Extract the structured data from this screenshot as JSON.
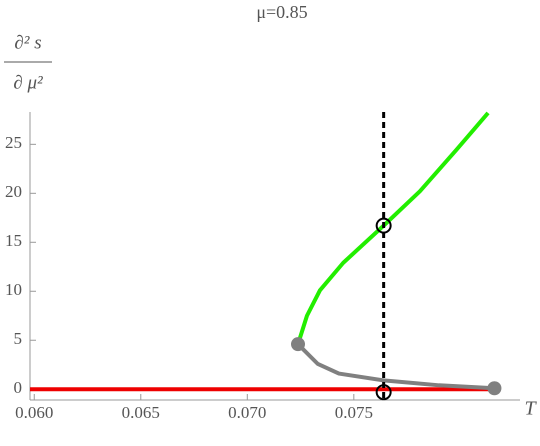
{
  "chart_data": {
    "type": "line",
    "title": "μ=0.85",
    "ylabel_numerator": "∂² s",
    "ylabel_denominator": "∂ μ²",
    "xlabel": "T",
    "xlim": [
      0.0598,
      0.0828
    ],
    "ylim": [
      -1.1,
      28.3
    ],
    "xticks": [
      {
        "value": 0.06,
        "label": "0.060"
      },
      {
        "value": 0.065,
        "label": "0.065"
      },
      {
        "value": 0.07,
        "label": "0.070"
      },
      {
        "value": 0.075,
        "label": "0.075"
      }
    ],
    "yticks": [
      0,
      5,
      10,
      15,
      20,
      25
    ],
    "series": [
      {
        "color": "#ee0000",
        "x": [
          0.0598,
          0.0816
        ],
        "values": [
          0,
          0
        ]
      },
      {
        "color": "#22ee00",
        "x": [
          0.07238,
          0.0728,
          0.07341,
          0.0745,
          0.0764,
          0.0781,
          0.0798,
          0.0813
        ],
        "values": [
          4.6,
          7.5,
          10.1,
          12.9,
          16.7,
          20.2,
          24.4,
          28.2
        ]
      },
      {
        "color": "#808080",
        "x": [
          0.07238,
          0.0733,
          0.0743,
          0.0764,
          0.079,
          0.0816
        ],
        "values": [
          4.6,
          2.6,
          1.6,
          0.9,
          0.4,
          0.1
        ]
      }
    ],
    "filled_points": {
      "color": "#808080",
      "x": [
        0.07238,
        0.0816
      ],
      "values": [
        4.6,
        0.1
      ]
    },
    "open_points": {
      "x": [
        0.0764,
        0.0764
      ],
      "values": [
        16.7,
        -0.3
      ]
    },
    "vline": 0.0764
  }
}
